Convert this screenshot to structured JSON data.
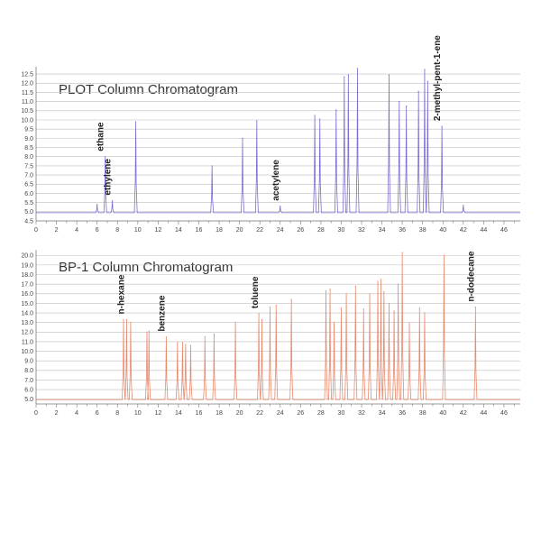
{
  "chart_data": [
    {
      "type": "line",
      "title": "PLOT Column Chromatogram",
      "xlabel": "",
      "ylabel": "",
      "xlim": [
        0,
        47.6
      ],
      "ylim": [
        4.5,
        12.8
      ],
      "xticks": [
        0,
        2,
        4,
        6,
        8,
        10,
        12,
        14,
        16,
        18,
        20,
        22,
        24,
        26,
        28,
        30,
        32,
        34,
        36,
        38,
        40,
        42,
        44,
        46
      ],
      "yticks": [
        4.5,
        5.0,
        5.5,
        6.0,
        6.5,
        7.0,
        7.5,
        8.0,
        8.5,
        9.0,
        9.5,
        10.0,
        10.5,
        11.0,
        11.5,
        12.0,
        12.5
      ],
      "ytick_labels": [
        "4.5",
        "5.0",
        "5.5",
        "6.0",
        "6.5",
        "7.0",
        "7.5",
        "8.0",
        "8.5",
        "9.0",
        "9.5",
        "10.0",
        "10.5",
        "11.0",
        "11.5",
        "12.0",
        "12.5"
      ],
      "grid": "horizontal",
      "legend": "none",
      "color": "#7c6fd0",
      "baseline": 4.95,
      "peaks": [
        [
          6.0,
          5.4
        ],
        [
          6.8,
          8.0
        ],
        [
          7.5,
          5.6
        ],
        [
          9.8,
          9.9
        ],
        [
          17.3,
          7.5
        ],
        [
          20.3,
          9.0
        ],
        [
          21.7,
          9.95
        ],
        [
          24.0,
          5.3
        ],
        [
          27.4,
          10.25
        ],
        [
          27.9,
          10.05
        ],
        [
          29.5,
          10.55
        ],
        [
          30.3,
          12.35
        ],
        [
          30.7,
          12.45
        ],
        [
          31.6,
          12.8
        ],
        [
          34.7,
          12.45
        ],
        [
          35.7,
          11.0
        ],
        [
          36.4,
          10.75
        ],
        [
          37.6,
          11.55
        ],
        [
          38.2,
          12.75
        ],
        [
          38.5,
          12.1
        ],
        [
          39.9,
          9.65
        ],
        [
          42.0,
          5.35
        ]
      ],
      "annotations": [
        {
          "text": "ethane",
          "x": 6.8
        },
        {
          "text": "ethylene",
          "x": 7.5
        },
        {
          "text": "acetylene",
          "x": 24.0
        },
        {
          "text": "2-methyl-pent-1-ene",
          "x": 39.9
        }
      ]
    },
    {
      "type": "line",
      "title": "BP-1 Column Chromatogram",
      "xlabel": "",
      "ylabel": "",
      "xlim": [
        0,
        47.6
      ],
      "ylim": [
        4.5,
        20.4
      ],
      "xticks": [
        0,
        2,
        4,
        6,
        8,
        10,
        12,
        14,
        16,
        18,
        20,
        22,
        24,
        26,
        28,
        30,
        32,
        34,
        36,
        38,
        40,
        42,
        44,
        46
      ],
      "yticks": [
        5.0,
        6.0,
        7.0,
        8.0,
        9.0,
        10.0,
        11.0,
        12.0,
        13.0,
        14.0,
        15.0,
        16.0,
        17.0,
        18.0,
        19.0,
        20.0
      ],
      "ytick_labels": [
        "5.0",
        "6.0",
        "7.0",
        "8.0",
        "9.0",
        "10.0",
        "11.0",
        "12.0",
        "13.0",
        "14.0",
        "15.0",
        "16.0",
        "17.0",
        "18.0",
        "19.0",
        "20.0"
      ],
      "grid": "horizontal",
      "legend": "none",
      "color": "#e88a6e",
      "baseline": 4.95,
      "peaks": [
        [
          8.6,
          13.3
        ],
        [
          8.9,
          13.3
        ],
        [
          9.3,
          13.0
        ],
        [
          10.9,
          12.0
        ],
        [
          11.1,
          12.1
        ],
        [
          12.8,
          11.5
        ],
        [
          13.9,
          10.9
        ],
        [
          14.4,
          10.9
        ],
        [
          14.7,
          10.7
        ],
        [
          15.2,
          10.6
        ],
        [
          16.6,
          11.5
        ],
        [
          17.5,
          11.8
        ],
        [
          19.6,
          13.0
        ],
        [
          21.9,
          13.9
        ],
        [
          22.2,
          13.3
        ],
        [
          23.0,
          14.6
        ],
        [
          23.6,
          14.8
        ],
        [
          25.1,
          15.4
        ],
        [
          28.5,
          16.3
        ],
        [
          28.9,
          16.5
        ],
        [
          29.3,
          13.0
        ],
        [
          30.0,
          14.5
        ],
        [
          30.5,
          16.0
        ],
        [
          31.4,
          16.8
        ],
        [
          32.2,
          14.4
        ],
        [
          32.8,
          16.0
        ],
        [
          33.6,
          17.3
        ],
        [
          33.9,
          17.5
        ],
        [
          34.2,
          16.2
        ],
        [
          34.7,
          15.0
        ],
        [
          35.2,
          14.2
        ],
        [
          35.6,
          17.0
        ],
        [
          36.0,
          20.3
        ],
        [
          36.7,
          12.9
        ],
        [
          37.7,
          14.5
        ],
        [
          38.2,
          14.0
        ],
        [
          40.1,
          20.0
        ],
        [
          43.2,
          14.6
        ]
      ],
      "annotations": [
        {
          "text": "n-hexane",
          "x": 8.8
        },
        {
          "text": "benzene",
          "x": 12.8
        },
        {
          "text": "toluene",
          "x": 22.0
        },
        {
          "text": "n-dodecane",
          "x": 43.2
        }
      ]
    }
  ]
}
